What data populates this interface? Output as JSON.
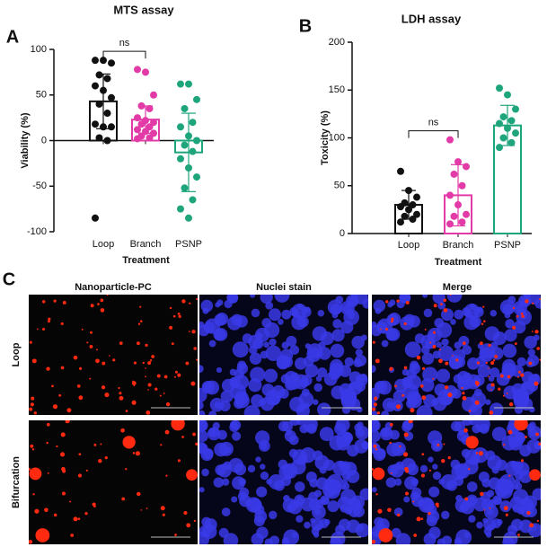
{
  "chart_data": [
    {
      "type": "bar",
      "panel_label": "A",
      "title": "MTS assay",
      "y_label": "Viability  (%)",
      "x_label": "Treatment",
      "categories": [
        "Loop",
        "Branch",
        "PSNP"
      ],
      "colors": [
        "#111111",
        "#e23ba8",
        "#1fa57c"
      ],
      "values": [
        43,
        23,
        -13
      ],
      "errors": [
        30,
        15,
        43
      ],
      "points": [
        [
          88,
          88,
          85,
          72,
          68,
          60,
          55,
          47,
          40,
          30,
          18,
          15,
          15,
          3,
          0,
          -85
        ],
        [
          78,
          75,
          50,
          38,
          35,
          25,
          22,
          20,
          18,
          15,
          12,
          10,
          8,
          5,
          3,
          2
        ],
        [
          62,
          62,
          45,
          35,
          20,
          15,
          5,
          0,
          -5,
          -12,
          -20,
          -30,
          -40,
          -52,
          -65,
          -75,
          -85
        ]
      ],
      "annotation": "ns",
      "ylim": [
        -100,
        100
      ],
      "yticks": [
        -100,
        -50,
        0,
        50,
        100
      ]
    },
    {
      "type": "bar",
      "panel_label": "B",
      "title": "LDH assay",
      "y_label": "Toxicity  (%)",
      "x_label": "Treatment",
      "categories": [
        "Loop",
        "Branch",
        "PSNP"
      ],
      "colors": [
        "#111111",
        "#e23ba8",
        "#1fa57c"
      ],
      "values": [
        30,
        40,
        113
      ],
      "errors": [
        15,
        32,
        21
      ],
      "points": [
        [
          65,
          45,
          38,
          32,
          30,
          28,
          25,
          20,
          18,
          15,
          12
        ],
        [
          98,
          75,
          70,
          62,
          50,
          40,
          30,
          20,
          18,
          12,
          10
        ],
        [
          152,
          145,
          130,
          122,
          118,
          115,
          110,
          105,
          100,
          95,
          90
        ]
      ],
      "annotation": "ns",
      "ylim": [
        0,
        200
      ],
      "yticks": [
        0,
        50,
        100,
        150,
        200
      ]
    }
  ],
  "microscopy": {
    "panel_label": "C",
    "columns": [
      "Nanoparticle-PC",
      "Nuclei stain",
      "Merge"
    ],
    "rows": [
      "Loop",
      "Bifurcation"
    ]
  }
}
